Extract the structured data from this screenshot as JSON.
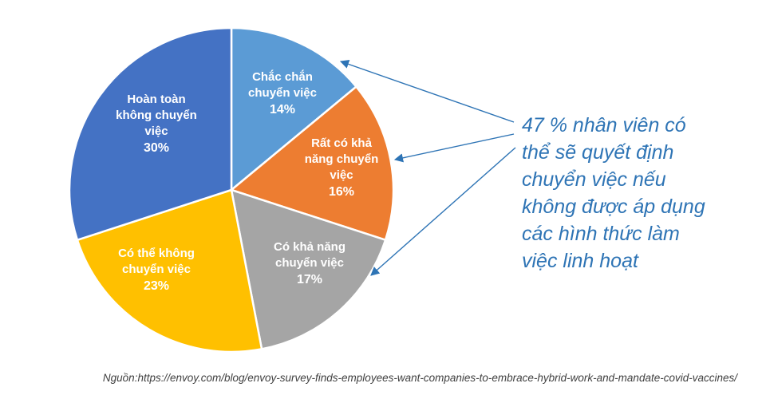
{
  "chart_data": {
    "type": "pie",
    "slices": [
      {
        "label_lines": [
          "Chắc chắn",
          "chuyển việc"
        ],
        "pct": "14%",
        "value": 14,
        "color": "#5b9bd5"
      },
      {
        "label_lines": [
          "Rất có khả",
          "năng chuyển",
          "việc"
        ],
        "pct": "16%",
        "value": 16,
        "color": "#ed7d31"
      },
      {
        "label_lines": [
          "Có khả năng",
          "chuyển việc"
        ],
        "pct": "17%",
        "value": 17,
        "color": "#a5a5a5"
      },
      {
        "label_lines": [
          "Có thể không",
          "chuyển việc"
        ],
        "pct": "23%",
        "value": 23,
        "color": "#ffc000"
      },
      {
        "label_lines": [
          "Hoàn toàn",
          "không chuyển",
          "việc"
        ],
        "pct": "30%",
        "value": 30,
        "color": "#4472c4"
      }
    ],
    "annotation_color": "#2e74b5"
  },
  "annotation": {
    "lines": [
      "47 % nhân viên có",
      "thể sẽ quyết định",
      "chuyển việc nếu",
      "không được áp dụng",
      "các hình thức làm",
      "việc linh hoạt"
    ]
  },
  "source": "Nguồn:https://envoy.com/blog/envoy-survey-finds-employees-want-companies-to-embrace-hybrid-work-and-mandate-covid-vaccines/"
}
